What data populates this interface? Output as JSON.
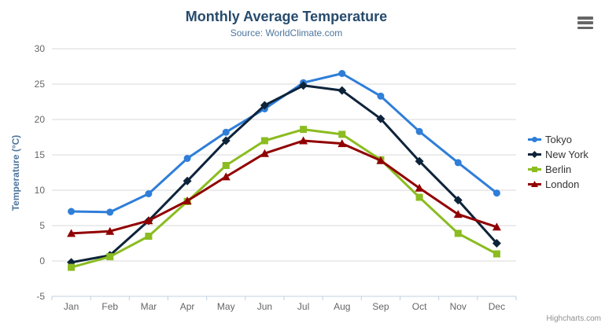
{
  "credit": {
    "label": "Highcharts.com"
  },
  "colors": {
    "title": "#274b6d",
    "subtitle": "#4d759e",
    "axis_title": "#4d759e",
    "tick_label": "#666666",
    "grid": "#d8d8d8",
    "axis_line": "#c0d0e0",
    "legend_text": "#333333",
    "credit": "#909090",
    "menu_icon": "#666666"
  },
  "chart_data": {
    "type": "line",
    "title": "Monthly Average Temperature",
    "subtitle": "Source: WorldClimate.com",
    "xlabel": "",
    "ylabel": "Temperature (°C)",
    "ylim": [
      -5,
      30
    ],
    "yticks": [
      -5,
      0,
      5,
      10,
      15,
      20,
      25,
      30
    ],
    "categories": [
      "Jan",
      "Feb",
      "Mar",
      "Apr",
      "May",
      "Jun",
      "Jul",
      "Aug",
      "Sep",
      "Oct",
      "Nov",
      "Dec"
    ],
    "grid": "horizontal-only",
    "legend_position": "right-middle",
    "series": [
      {
        "name": "Tokyo",
        "color": "#2f7ed8",
        "marker": "circle",
        "values": [
          7.0,
          6.9,
          9.5,
          14.5,
          18.2,
          21.5,
          25.2,
          26.5,
          23.3,
          18.3,
          13.9,
          9.6
        ]
      },
      {
        "name": "New York",
        "color": "#0d233a",
        "marker": "diamond",
        "values": [
          -0.2,
          0.8,
          5.7,
          11.3,
          17.0,
          22.0,
          24.8,
          24.1,
          20.1,
          14.1,
          8.6,
          2.5
        ]
      },
      {
        "name": "Berlin",
        "color": "#8bbc21",
        "marker": "square",
        "values": [
          -0.9,
          0.6,
          3.5,
          8.4,
          13.5,
          17.0,
          18.6,
          17.9,
          14.3,
          9.0,
          3.9,
          1.0
        ]
      },
      {
        "name": "London",
        "color": "#910000",
        "marker": "triangle",
        "values": [
          3.9,
          4.2,
          5.7,
          8.5,
          11.9,
          15.2,
          17.0,
          16.6,
          14.2,
          10.3,
          6.6,
          4.8
        ]
      }
    ]
  }
}
